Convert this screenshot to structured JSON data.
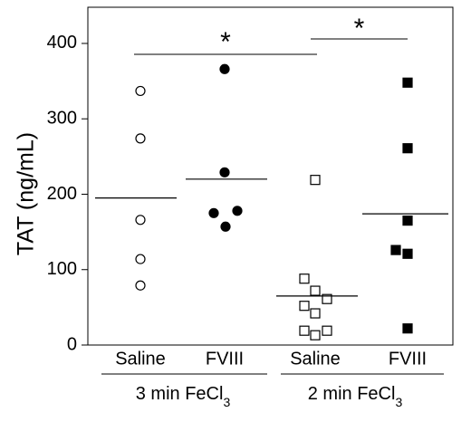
{
  "chart_data": {
    "type": "dotplot",
    "y_label": "TAT (ng/mL)",
    "categories": [
      "Saline",
      "FVIII",
      "Saline",
      "FVIII"
    ],
    "values": [
      [
        337,
        274,
        166,
        114,
        79
      ],
      [
        366,
        229,
        175,
        178,
        157
      ],
      [
        219,
        88,
        72,
        61,
        52,
        42,
        19,
        19,
        13
      ],
      [
        348,
        261,
        165,
        126,
        121,
        22
      ]
    ],
    "means": [
      195,
      220,
      65,
      174
    ],
    "markers": [
      {
        "shape": "circle",
        "filled": false
      },
      {
        "shape": "circle",
        "filled": true
      },
      {
        "shape": "square",
        "filled": false
      },
      {
        "shape": "square",
        "filled": true
      }
    ],
    "color": "#000000",
    "groups": [
      {
        "label": "3 min FeCl",
        "subscript": "3"
      },
      {
        "label": "2 min FeCl",
        "subscript": "3"
      }
    ],
    "annotations": [
      {
        "text": "*"
      },
      {
        "text": "*"
      }
    ],
    "ylim": [
      0,
      448
    ],
    "yticks": [
      0,
      100,
      200,
      300,
      400
    ]
  }
}
